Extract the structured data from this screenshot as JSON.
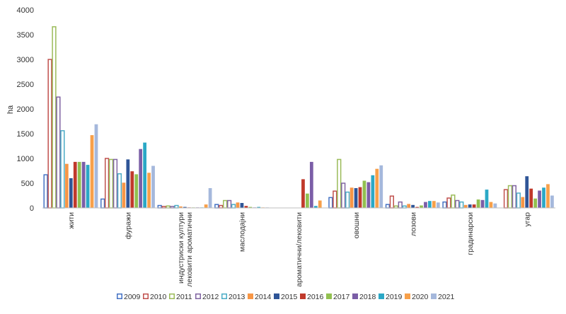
{
  "chart_data": {
    "type": "bar",
    "ylabel": "ha",
    "xlabel": "",
    "title": "",
    "ylim": [
      0,
      4000
    ],
    "yticks": [
      0,
      500,
      1000,
      1500,
      2000,
      2500,
      3000,
      3500,
      4000
    ],
    "grid": false,
    "legend_position": "bottom",
    "categories": [
      "жити",
      "фуражи",
      "индустриски култури лековити ароматични",
      "маслодајни",
      "ароматични/лековити",
      "овошни",
      "лозови",
      "градинарски",
      "угар"
    ],
    "series": [
      {
        "name": "2009",
        "color": "#4472C4",
        "hollow": true,
        "values": [
          680,
          190,
          60,
          80,
          0,
          220,
          80,
          130,
          0
        ]
      },
      {
        "name": "2010",
        "color": "#C0504D",
        "hollow": true,
        "values": [
          3010,
          1010,
          40,
          60,
          0,
          350,
          250,
          210,
          380
        ]
      },
      {
        "name": "2011",
        "color": "#9BBB59",
        "hollow": true,
        "values": [
          3670,
          990,
          50,
          160,
          0,
          990,
          50,
          270,
          460
        ]
      },
      {
        "name": "2012",
        "color": "#8064A2",
        "hollow": true,
        "values": [
          2250,
          990,
          40,
          160,
          0,
          510,
          130,
          160,
          460
        ]
      },
      {
        "name": "2013",
        "color": "#4BACC6",
        "hollow": true,
        "values": [
          1570,
          700,
          60,
          80,
          0,
          330,
          50,
          130,
          310
        ]
      },
      {
        "name": "2014",
        "color": "#F79646",
        "hollow": false,
        "values": [
          890,
          510,
          30,
          110,
          0,
          410,
          80,
          60,
          220
        ]
      },
      {
        "name": "2015",
        "color": "#2F5597",
        "hollow": false,
        "values": [
          600,
          980,
          20,
          100,
          0,
          400,
          60,
          70,
          640
        ]
      },
      {
        "name": "2016",
        "color": "#C0392B",
        "hollow": false,
        "values": [
          930,
          740,
          10,
          40,
          580,
          420,
          20,
          70,
          390
        ]
      },
      {
        "name": "2017",
        "color": "#92C050",
        "hollow": false,
        "values": [
          930,
          680,
          10,
          20,
          290,
          550,
          50,
          170,
          190
        ]
      },
      {
        "name": "2018",
        "color": "#7B5EA7",
        "hollow": false,
        "values": [
          930,
          1190,
          10,
          10,
          930,
          520,
          120,
          160,
          350
        ]
      },
      {
        "name": "2019",
        "color": "#2BA8C6",
        "hollow": false,
        "values": [
          870,
          1320,
          10,
          20,
          40,
          660,
          140,
          370,
          410
        ]
      },
      {
        "name": "2020",
        "color": "#F7A04A",
        "hollow": false,
        "values": [
          1470,
          710,
          70,
          10,
          150,
          790,
          140,
          120,
          480
        ]
      },
      {
        "name": "2021",
        "color": "#A5B8DC",
        "hollow": false,
        "values": [
          1690,
          850,
          400,
          10,
          0,
          860,
          110,
          90,
          250
        ]
      }
    ]
  }
}
